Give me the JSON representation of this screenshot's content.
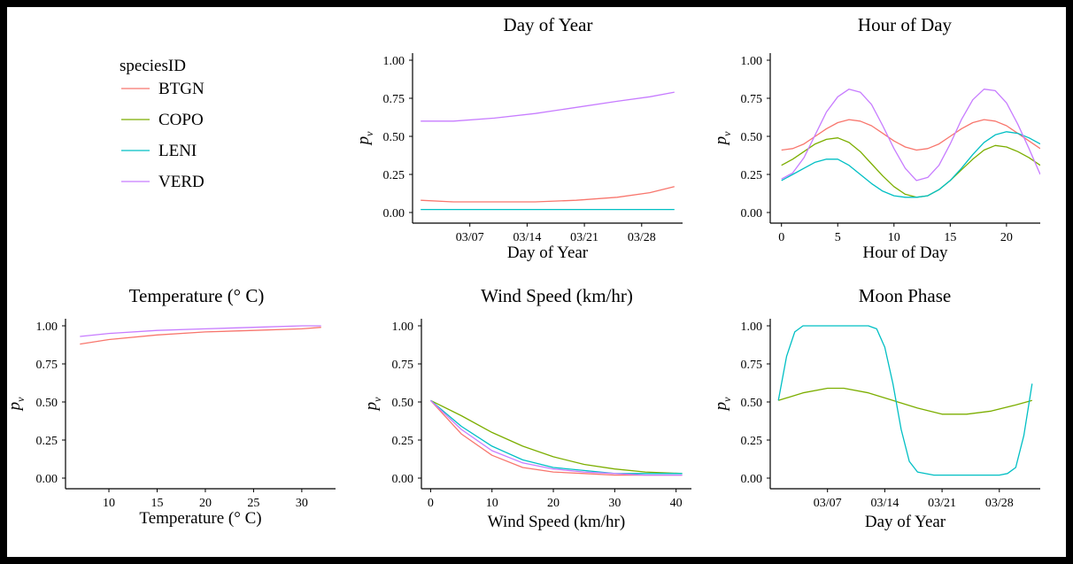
{
  "legend": {
    "title": "speciesID",
    "items": [
      {
        "label": "BTGN",
        "color": "#F8766D"
      },
      {
        "label": "COPO",
        "color": "#7CAE00"
      },
      {
        "label": "LENI",
        "color": "#00BFC4"
      },
      {
        "label": "VERD",
        "color": "#C77CFF"
      }
    ]
  },
  "chart_data": [
    {
      "type": "line",
      "title": "Day of Year",
      "xlabel": "Day of Year",
      "ylabel": "p",
      "ylabel_sub": "v",
      "xlim": [
        0,
        33
      ],
      "ylim": [
        0,
        1
      ],
      "xticks": [
        {
          "value": 7,
          "label": "03/07"
        },
        {
          "value": 14,
          "label": "03/14"
        },
        {
          "value": 21,
          "label": "03/21"
        },
        {
          "value": 28,
          "label": "03/28"
        }
      ],
      "yticks": [
        {
          "value": 0,
          "label": "0.00"
        },
        {
          "value": 0.25,
          "label": "0.25"
        },
        {
          "value": 0.5,
          "label": "0.50"
        },
        {
          "value": 0.75,
          "label": "0.75"
        },
        {
          "value": 1,
          "label": "1.00"
        }
      ],
      "series": [
        {
          "name": "BTGN",
          "x": [
            1,
            5,
            10,
            15,
            20,
            25,
            29,
            32
          ],
          "y": [
            0.08,
            0.07,
            0.07,
            0.07,
            0.08,
            0.1,
            0.13,
            0.17
          ]
        },
        {
          "name": "LENI",
          "x": [
            1,
            32
          ],
          "y": [
            0.02,
            0.02
          ]
        },
        {
          "name": "VERD",
          "x": [
            1,
            5,
            10,
            15,
            20,
            25,
            29,
            32
          ],
          "y": [
            0.6,
            0.6,
            0.62,
            0.65,
            0.69,
            0.73,
            0.76,
            0.79
          ]
        }
      ]
    },
    {
      "type": "line",
      "title": "Hour of Day",
      "xlabel": "Hour of Day",
      "ylabel": "p",
      "ylabel_sub": "v",
      "xlim": [
        -1,
        23
      ],
      "ylim": [
        0,
        1
      ],
      "xticks": [
        {
          "value": 0,
          "label": "0"
        },
        {
          "value": 5,
          "label": "5"
        },
        {
          "value": 10,
          "label": "10"
        },
        {
          "value": 15,
          "label": "15"
        },
        {
          "value": 20,
          "label": "20"
        }
      ],
      "yticks": [
        {
          "value": 0,
          "label": "0.00"
        },
        {
          "value": 0.25,
          "label": "0.25"
        },
        {
          "value": 0.5,
          "label": "0.50"
        },
        {
          "value": 0.75,
          "label": "0.75"
        },
        {
          "value": 1,
          "label": "1.00"
        }
      ],
      "series": [
        {
          "name": "BTGN",
          "x": [
            0,
            1,
            2,
            3,
            4,
            5,
            6,
            7,
            8,
            9,
            10,
            11,
            12,
            13,
            14,
            15,
            16,
            17,
            18,
            19,
            20,
            21,
            22,
            23
          ],
          "y": [
            0.41,
            0.42,
            0.45,
            0.5,
            0.55,
            0.59,
            0.61,
            0.6,
            0.57,
            0.52,
            0.47,
            0.43,
            0.41,
            0.42,
            0.45,
            0.5,
            0.55,
            0.59,
            0.61,
            0.6,
            0.57,
            0.52,
            0.47,
            0.42
          ]
        },
        {
          "name": "COPO",
          "x": [
            0,
            1,
            2,
            3,
            4,
            5,
            6,
            7,
            8,
            9,
            10,
            11,
            12,
            13,
            14,
            15,
            16,
            17,
            18,
            19,
            20,
            21,
            22,
            23
          ],
          "y": [
            0.31,
            0.35,
            0.4,
            0.45,
            0.48,
            0.49,
            0.46,
            0.4,
            0.32,
            0.24,
            0.17,
            0.12,
            0.1,
            0.11,
            0.15,
            0.21,
            0.28,
            0.35,
            0.41,
            0.44,
            0.43,
            0.4,
            0.36,
            0.31
          ]
        },
        {
          "name": "LENI",
          "x": [
            0,
            1,
            2,
            3,
            4,
            5,
            6,
            7,
            8,
            9,
            10,
            11,
            12,
            13,
            14,
            15,
            16,
            17,
            18,
            19,
            20,
            21,
            22,
            23
          ],
          "y": [
            0.21,
            0.25,
            0.29,
            0.33,
            0.35,
            0.35,
            0.31,
            0.25,
            0.19,
            0.14,
            0.11,
            0.1,
            0.1,
            0.11,
            0.15,
            0.21,
            0.29,
            0.38,
            0.46,
            0.51,
            0.53,
            0.52,
            0.49,
            0.45
          ]
        },
        {
          "name": "VERD",
          "x": [
            0,
            1,
            2,
            3,
            4,
            5,
            6,
            7,
            8,
            9,
            10,
            11,
            12,
            13,
            14,
            15,
            16,
            17,
            18,
            19,
            20,
            21,
            22,
            23
          ],
          "y": [
            0.22,
            0.26,
            0.36,
            0.51,
            0.66,
            0.76,
            0.81,
            0.79,
            0.71,
            0.57,
            0.42,
            0.29,
            0.21,
            0.23,
            0.31,
            0.45,
            0.61,
            0.74,
            0.81,
            0.8,
            0.72,
            0.58,
            0.42,
            0.25
          ]
        }
      ]
    },
    {
      "type": "line",
      "title": "Temperature (° C)",
      "xlabel": "Temperature (° C)",
      "ylabel": "p",
      "ylabel_sub": "v",
      "xlim": [
        5.5,
        33.5
      ],
      "ylim": [
        0,
        1
      ],
      "xticks": [
        {
          "value": 10,
          "label": "10"
        },
        {
          "value": 15,
          "label": "15"
        },
        {
          "value": 20,
          "label": "20"
        },
        {
          "value": 25,
          "label": "25"
        },
        {
          "value": 30,
          "label": "30"
        }
      ],
      "yticks": [
        {
          "value": 0,
          "label": "0.00"
        },
        {
          "value": 0.25,
          "label": "0.25"
        },
        {
          "value": 0.5,
          "label": "0.50"
        },
        {
          "value": 0.75,
          "label": "0.75"
        },
        {
          "value": 1,
          "label": "1.00"
        }
      ],
      "series": [
        {
          "name": "BTGN",
          "x": [
            7,
            10,
            15,
            20,
            25,
            30,
            32
          ],
          "y": [
            0.88,
            0.91,
            0.94,
            0.96,
            0.97,
            0.98,
            0.99
          ]
        },
        {
          "name": "VERD",
          "x": [
            7,
            10,
            15,
            20,
            25,
            30,
            32
          ],
          "y": [
            0.93,
            0.95,
            0.97,
            0.98,
            0.99,
            1.0,
            1.0
          ]
        }
      ]
    },
    {
      "type": "line",
      "title": "Wind Speed (km/hr)",
      "xlabel": "Wind Speed (km/hr)",
      "ylabel": "p",
      "ylabel_sub": "v",
      "xlim": [
        -1.5,
        42.5
      ],
      "ylim": [
        0,
        1
      ],
      "xticks": [
        {
          "value": 0,
          "label": "0"
        },
        {
          "value": 10,
          "label": "10"
        },
        {
          "value": 20,
          "label": "20"
        },
        {
          "value": 30,
          "label": "30"
        },
        {
          "value": 40,
          "label": "40"
        }
      ],
      "yticks": [
        {
          "value": 0,
          "label": "0.00"
        },
        {
          "value": 0.25,
          "label": "0.25"
        },
        {
          "value": 0.5,
          "label": "0.50"
        },
        {
          "value": 0.75,
          "label": "0.75"
        },
        {
          "value": 1,
          "label": "1.00"
        }
      ],
      "series": [
        {
          "name": "BTGN",
          "x": [
            0,
            5,
            10,
            15,
            20,
            25,
            30,
            35,
            41
          ],
          "y": [
            0.51,
            0.29,
            0.15,
            0.07,
            0.04,
            0.03,
            0.02,
            0.02,
            0.02
          ]
        },
        {
          "name": "COPO",
          "x": [
            0,
            5,
            10,
            15,
            20,
            25,
            30,
            35,
            41
          ],
          "y": [
            0.51,
            0.41,
            0.3,
            0.21,
            0.14,
            0.09,
            0.06,
            0.04,
            0.03
          ]
        },
        {
          "name": "LENI",
          "x": [
            0,
            5,
            10,
            15,
            20,
            25,
            30,
            35,
            41
          ],
          "y": [
            0.51,
            0.34,
            0.21,
            0.12,
            0.07,
            0.05,
            0.03,
            0.03,
            0.03
          ]
        },
        {
          "name": "VERD",
          "x": [
            0,
            5,
            10,
            15,
            20,
            25,
            30,
            35,
            41
          ],
          "y": [
            0.51,
            0.32,
            0.18,
            0.1,
            0.06,
            0.04,
            0.03,
            0.02,
            0.02
          ]
        }
      ]
    },
    {
      "type": "line",
      "title": "Moon Phase",
      "xlabel": "Day of Year",
      "ylabel": "p",
      "ylabel_sub": "v",
      "xlim": [
        0,
        33
      ],
      "ylim": [
        0,
        1
      ],
      "xticks": [
        {
          "value": 7,
          "label": "03/07"
        },
        {
          "value": 14,
          "label": "03/14"
        },
        {
          "value": 21,
          "label": "03/21"
        },
        {
          "value": 28,
          "label": "03/28"
        }
      ],
      "yticks": [
        {
          "value": 0,
          "label": "0.00"
        },
        {
          "value": 0.25,
          "label": "0.25"
        },
        {
          "value": 0.5,
          "label": "0.50"
        },
        {
          "value": 0.75,
          "label": "0.75"
        },
        {
          "value": 1,
          "label": "1.00"
        }
      ],
      "series": [
        {
          "name": "COPO",
          "x": [
            1,
            4,
            7,
            9,
            12,
            15,
            18,
            21,
            24,
            27,
            30,
            32
          ],
          "y": [
            0.51,
            0.56,
            0.59,
            0.59,
            0.56,
            0.51,
            0.46,
            0.42,
            0.42,
            0.44,
            0.48,
            0.51
          ]
        },
        {
          "name": "LENI",
          "x": [
            1,
            2,
            3,
            4,
            12,
            13,
            14,
            15,
            16,
            17,
            18,
            20,
            28,
            29,
            30,
            31,
            32
          ],
          "y": [
            0.51,
            0.8,
            0.96,
            1.0,
            1.0,
            0.98,
            0.86,
            0.62,
            0.32,
            0.11,
            0.04,
            0.02,
            0.02,
            0.03,
            0.07,
            0.28,
            0.62
          ]
        }
      ]
    }
  ]
}
